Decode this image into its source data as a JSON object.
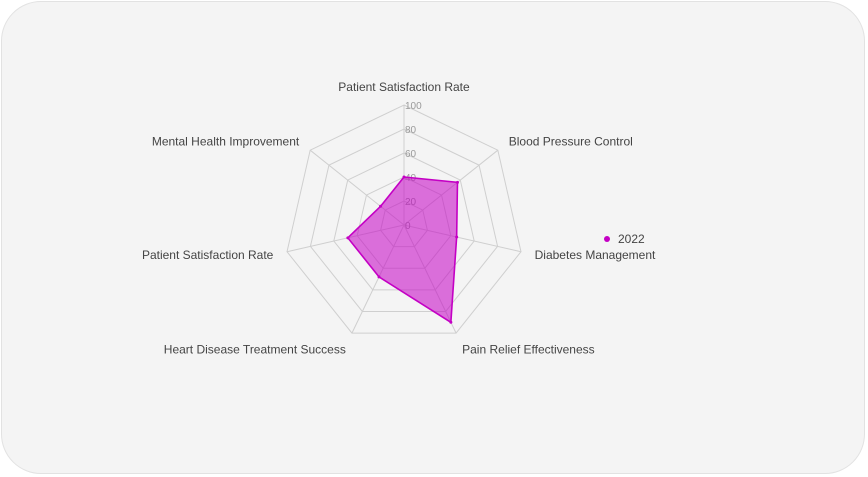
{
  "chart_data": {
    "type": "radar",
    "title": "",
    "axes": [
      "Patient Satisfaction Rate",
      "Blood Pressure Control",
      "Diabetes Management",
      "Pain Relief Effectiveness",
      "Heart Disease Treatment Success",
      "Patient Satisfaction Rate",
      "Mental Health Improvement"
    ],
    "ticks": [
      0,
      20,
      40,
      60,
      80,
      100
    ],
    "range": [
      0,
      100
    ],
    "series": [
      {
        "name": "2022",
        "values": [
          40,
          57,
          45,
          90,
          48,
          48,
          25
        ],
        "color": "#c400c4"
      }
    ],
    "grid": true,
    "legend_position": "right"
  }
}
